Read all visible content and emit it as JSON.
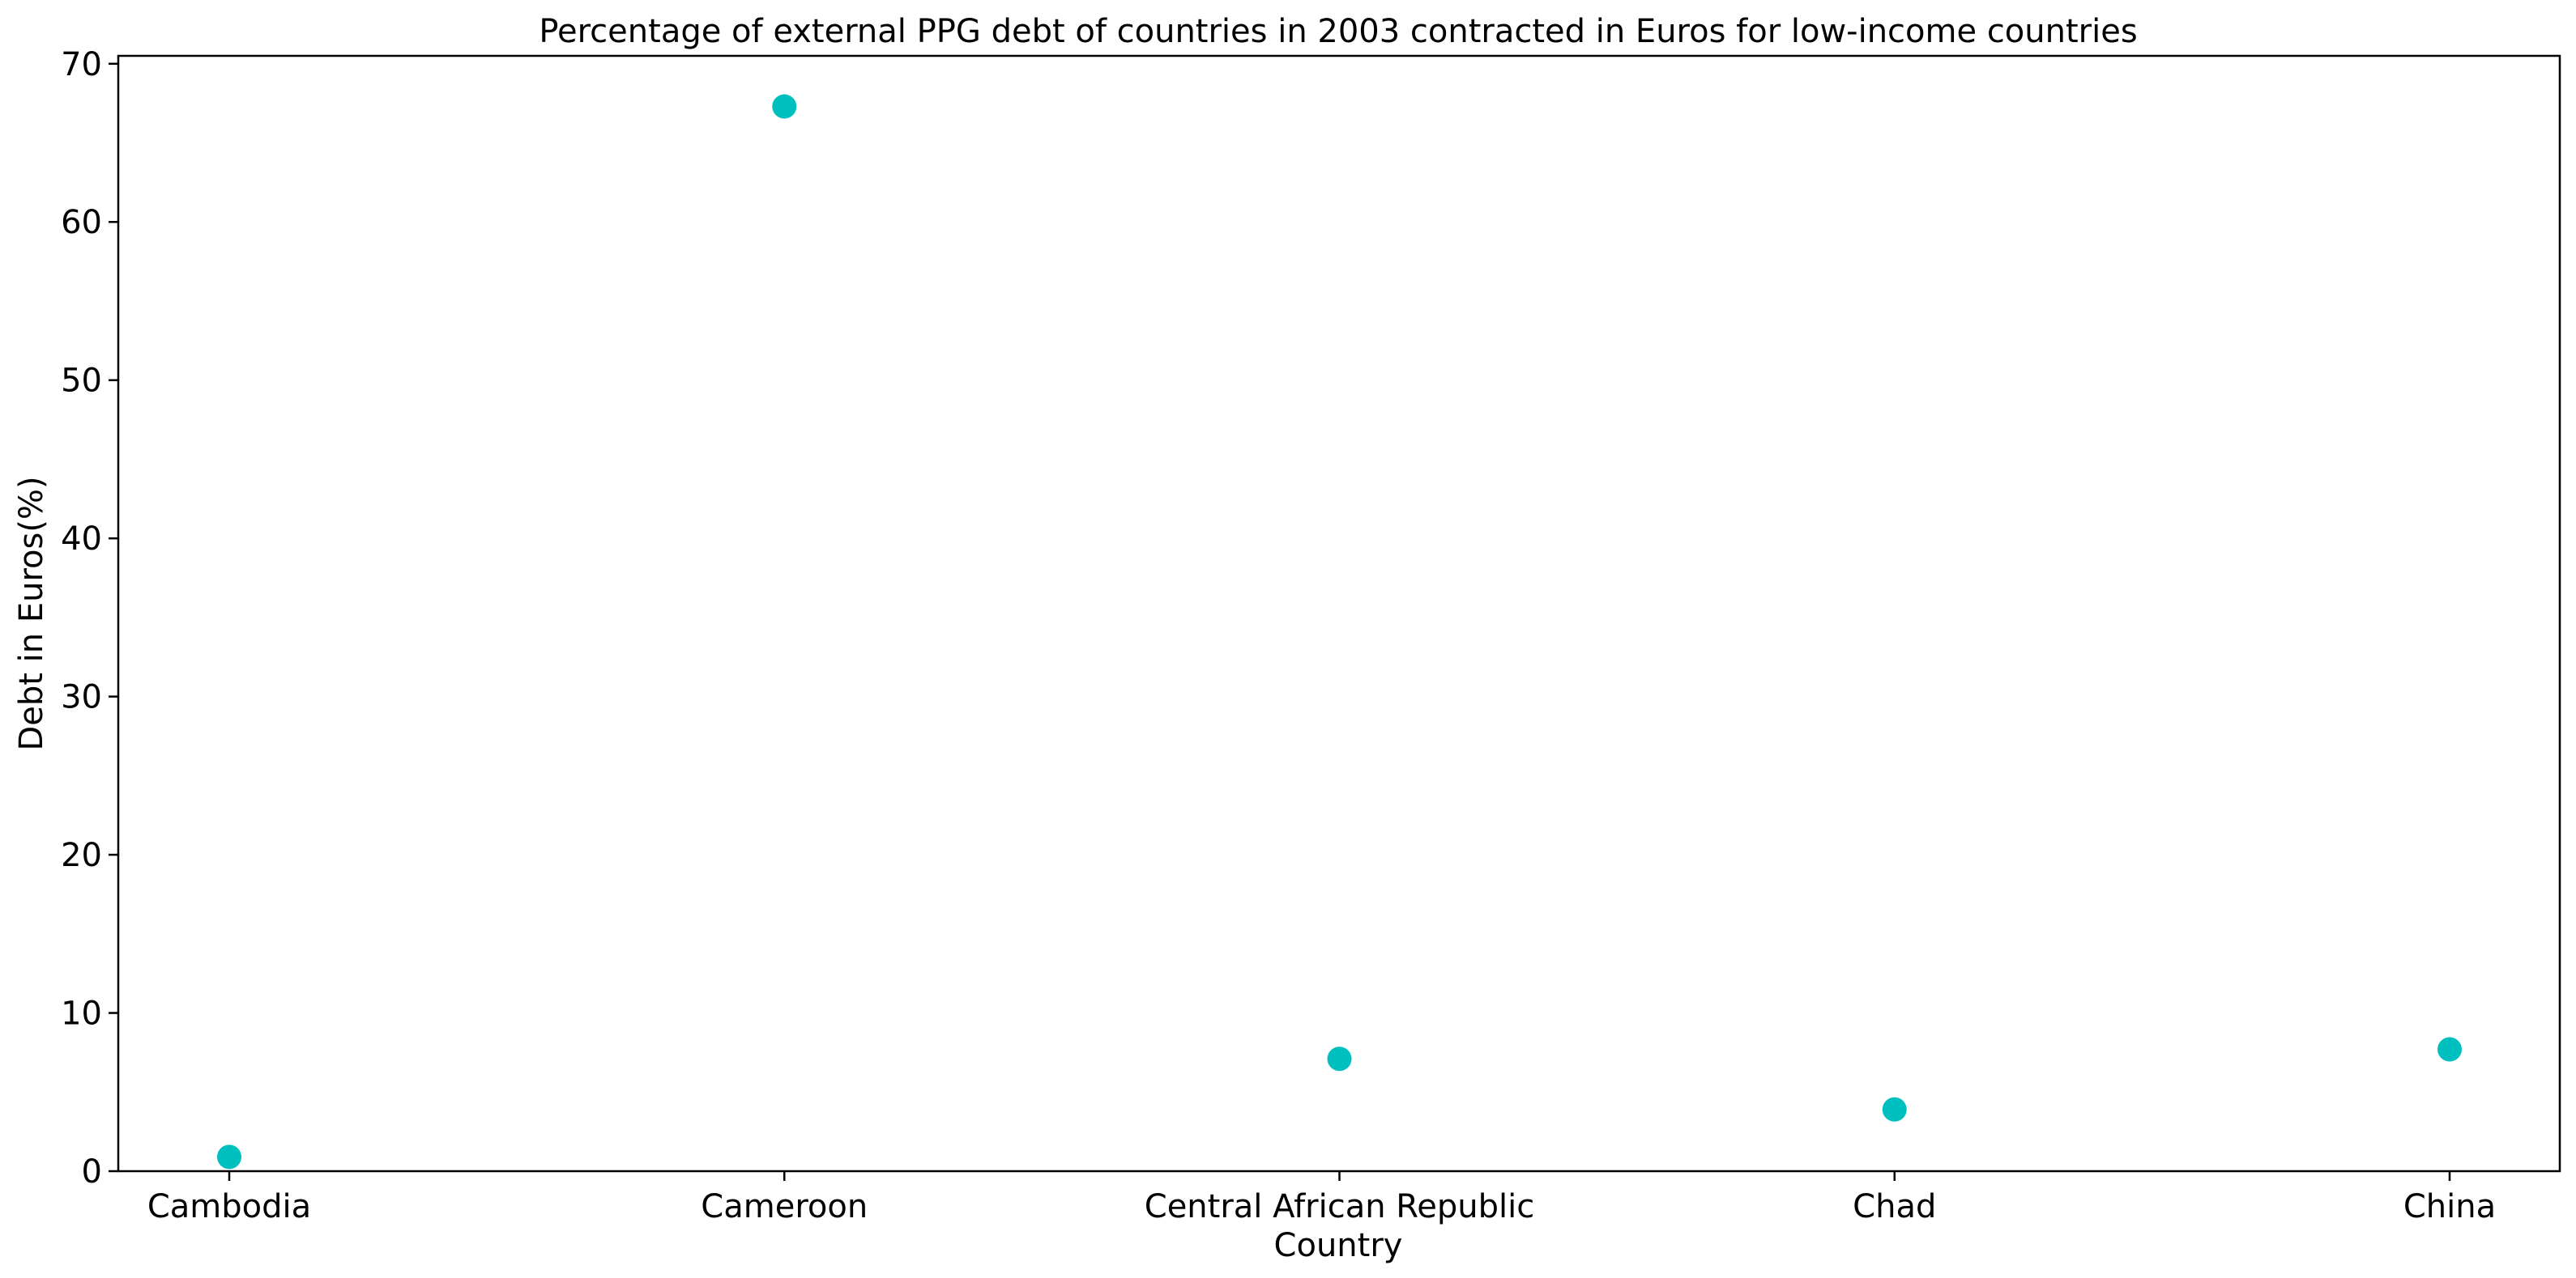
{
  "chart_data": {
    "type": "scatter",
    "title": "Percentage of external PPG debt of countries in 2003 contracted in Euros for low-income countries",
    "xlabel": "Country",
    "ylabel": "Debt in Euros(%)",
    "categories": [
      "Cambodia",
      "Cameroon",
      "Central African Republic",
      "Chad",
      "China"
    ],
    "values": [
      0.9,
      67.3,
      7.1,
      3.9,
      7.7
    ],
    "ylim": [
      0,
      70.5
    ],
    "yticks": [
      0,
      10,
      20,
      30,
      40,
      50,
      60,
      70
    ],
    "marker_color": "#00bfbf",
    "grid": false,
    "legend": "none"
  }
}
